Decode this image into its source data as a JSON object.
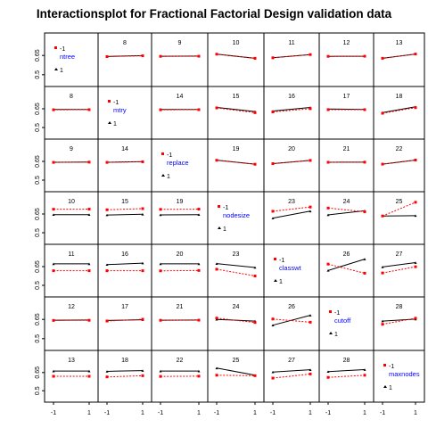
{
  "title": "Interactionsplot for Fractional Factorial Design validation data",
  "factors": [
    "ntree",
    "mtry",
    "replace",
    "nodesize",
    "classwt",
    "cutoff",
    "maxnodes"
  ],
  "legend_levels": [
    "-1",
    "1"
  ],
  "colors": {
    "level_minus1": "#ff0000",
    "level_plus1": "#000000",
    "factor_label": "#0000ff",
    "frame": "#000000"
  },
  "chart_data": {
    "type": "line",
    "title": "Interactionsplot for Fractional Factorial Design validation data",
    "x_levels": [
      "-1",
      "1"
    ],
    "y_ticks": [
      "0.5",
      "0.65"
    ],
    "ylim": [
      0.45,
      0.7
    ],
    "grid": false,
    "panels": [
      {
        "row": 0,
        "col": 1,
        "label": "8",
        "red": [
          0.641,
          0.647
        ],
        "black": [
          0.642,
          0.649
        ]
      },
      {
        "row": 0,
        "col": 2,
        "label": "9",
        "red": [
          0.643,
          0.644
        ],
        "black": [
          0.644,
          0.645
        ]
      },
      {
        "row": 0,
        "col": 3,
        "label": "10",
        "red": [
          0.66,
          0.628
        ],
        "black": [
          0.66,
          0.628
        ]
      },
      {
        "row": 0,
        "col": 4,
        "label": "11",
        "red": [
          0.632,
          0.657
        ],
        "black": [
          0.632,
          0.657
        ]
      },
      {
        "row": 0,
        "col": 5,
        "label": "12",
        "red": [
          0.643,
          0.644
        ],
        "black": [
          0.643,
          0.644
        ]
      },
      {
        "row": 0,
        "col": 6,
        "label": "13",
        "red": [
          0.628,
          0.661
        ],
        "black": [
          0.628,
          0.661
        ]
      },
      {
        "row": 1,
        "col": 0,
        "label": "8",
        "red": [
          0.642,
          0.643
        ],
        "black": [
          0.645,
          0.645
        ]
      },
      {
        "row": 1,
        "col": 2,
        "label": "14",
        "red": [
          0.642,
          0.643
        ],
        "black": [
          0.645,
          0.645
        ]
      },
      {
        "row": 1,
        "col": 3,
        "label": "15",
        "red": [
          0.657,
          0.619
        ],
        "black": [
          0.661,
          0.628
        ]
      },
      {
        "row": 1,
        "col": 4,
        "label": "16",
        "red": [
          0.625,
          0.651
        ],
        "black": [
          0.632,
          0.661
        ]
      },
      {
        "row": 1,
        "col": 5,
        "label": "17",
        "red": [
          0.643,
          0.643
        ],
        "black": [
          0.648,
          0.645
        ]
      },
      {
        "row": 1,
        "col": 6,
        "label": "18",
        "red": [
          0.614,
          0.659
        ],
        "black": [
          0.62,
          0.666
        ]
      },
      {
        "row": 2,
        "col": 0,
        "label": "9",
        "red": [
          0.642,
          0.644
        ],
        "black": [
          0.643,
          0.645
        ]
      },
      {
        "row": 2,
        "col": 1,
        "label": "14",
        "red": [
          0.642,
          0.647
        ],
        "black": [
          0.643,
          0.648
        ]
      },
      {
        "row": 2,
        "col": 3,
        "label": "19",
        "red": [
          0.659,
          0.627
        ],
        "black": [
          0.66,
          0.628
        ]
      },
      {
        "row": 2,
        "col": 4,
        "label": "20",
        "red": [
          0.632,
          0.658
        ],
        "black": [
          0.632,
          0.658
        ]
      },
      {
        "row": 2,
        "col": 5,
        "label": "21",
        "red": [
          0.643,
          0.644
        ],
        "black": [
          0.643,
          0.644
        ]
      },
      {
        "row": 2,
        "col": 6,
        "label": "22",
        "red": [
          0.628,
          0.661
        ],
        "black": [
          0.628,
          0.661
        ]
      },
      {
        "row": 3,
        "col": 0,
        "label": "10",
        "red": [
          0.688,
          0.689
        ],
        "black": [
          0.645,
          0.645
        ]
      },
      {
        "row": 3,
        "col": 1,
        "label": "15",
        "red": [
          0.684,
          0.693
        ],
        "black": [
          0.642,
          0.648
        ]
      },
      {
        "row": 3,
        "col": 2,
        "label": "19",
        "red": [
          0.687,
          0.689
        ],
        "black": [
          0.643,
          0.645
        ]
      },
      {
        "row": 3,
        "col": 4,
        "label": "23",
        "red": [
          0.672,
          0.706
        ],
        "black": [
          0.617,
          0.673
        ]
      },
      {
        "row": 3,
        "col": 5,
        "label": "24",
        "red": [
          0.698,
          0.668
        ],
        "black": [
          0.643,
          0.676
        ]
      },
      {
        "row": 3,
        "col": 6,
        "label": "25",
        "red": [
          0.634,
          0.744
        ],
        "black": [
          0.634,
          0.637
        ]
      },
      {
        "row": 4,
        "col": 0,
        "label": "11",
        "red": [
          0.617,
          0.617
        ],
        "black": [
          0.672,
          0.672
        ]
      },
      {
        "row": 4,
        "col": 1,
        "label": "16",
        "red": [
          0.617,
          0.617
        ],
        "black": [
          0.666,
          0.678
        ]
      },
      {
        "row": 4,
        "col": 2,
        "label": "20",
        "red": [
          0.616,
          0.619
        ],
        "black": [
          0.672,
          0.672
        ]
      },
      {
        "row": 4,
        "col": 3,
        "label": "23",
        "red": [
          0.629,
          0.575
        ],
        "black": [
          0.674,
          0.643
        ]
      },
      {
        "row": 4,
        "col": 5,
        "label": "26",
        "red": [
          0.67,
          0.597
        ],
        "black": [
          0.619,
          0.71
        ]
      },
      {
        "row": 4,
        "col": 6,
        "label": "27",
        "red": [
          0.599,
          0.649
        ],
        "black": [
          0.647,
          0.682
        ]
      },
      {
        "row": 5,
        "col": 0,
        "label": "12",
        "red": [
          0.642,
          0.643
        ],
        "black": [
          0.644,
          0.645
        ]
      },
      {
        "row": 5,
        "col": 1,
        "label": "17",
        "red": [
          0.637,
          0.651
        ],
        "black": [
          0.642,
          0.647
        ]
      },
      {
        "row": 5,
        "col": 2,
        "label": "21",
        "red": [
          0.643,
          0.644
        ],
        "black": [
          0.644,
          0.645
        ]
      },
      {
        "row": 5,
        "col": 3,
        "label": "24",
        "red": [
          0.66,
          0.626
        ],
        "black": [
          0.65,
          0.637
        ]
      },
      {
        "row": 5,
        "col": 4,
        "label": "26",
        "red": [
          0.653,
          0.628
        ],
        "black": [
          0.605,
          0.682
        ]
      },
      {
        "row": 5,
        "col": 6,
        "label": "28",
        "red": [
          0.612,
          0.659
        ],
        "black": [
          0.637,
          0.652
        ]
      },
      {
        "row": 6,
        "col": 0,
        "label": "13",
        "red": [
          0.619,
          0.619
        ],
        "black": [
          0.662,
          0.662
        ]
      },
      {
        "row": 6,
        "col": 1,
        "label": "18",
        "red": [
          0.614,
          0.624
        ],
        "black": [
          0.66,
          0.666
        ]
      },
      {
        "row": 6,
        "col": 2,
        "label": "22",
        "red": [
          0.618,
          0.62
        ],
        "black": [
          0.662,
          0.662
        ]
      },
      {
        "row": 6,
        "col": 3,
        "label": "25",
        "red": [
          0.628,
          0.624
        ],
        "black": [
          0.687,
          0.628
        ]
      },
      {
        "row": 6,
        "col": 4,
        "label": "27",
        "red": [
          0.604,
          0.638
        ],
        "black": [
          0.654,
          0.673
        ]
      },
      {
        "row": 6,
        "col": 5,
        "label": "28",
        "red": [
          0.61,
          0.628
        ],
        "black": [
          0.658,
          0.674
        ]
      }
    ]
  }
}
